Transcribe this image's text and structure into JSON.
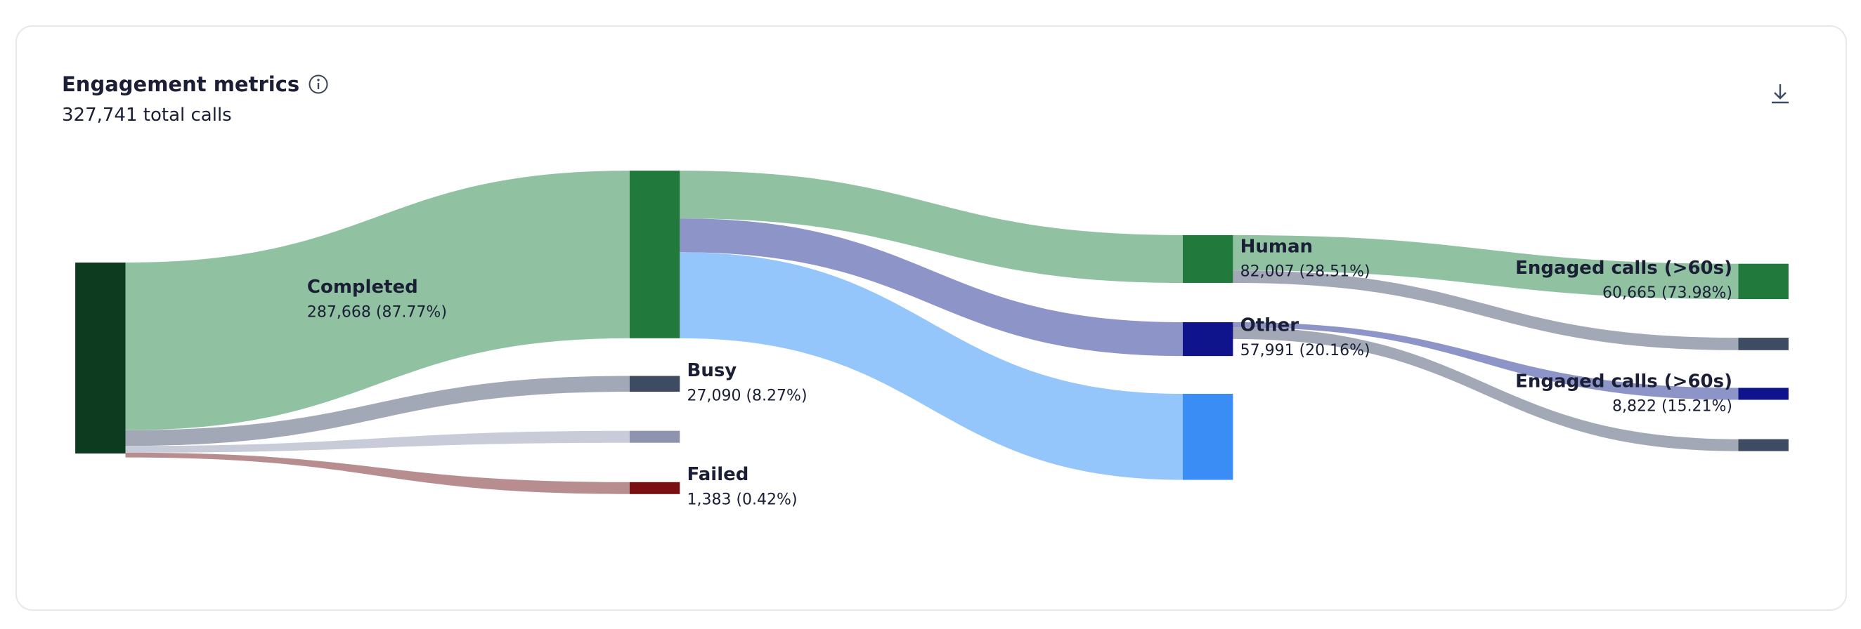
{
  "header": {
    "title": "Engagement metrics",
    "subtitle": "327,741 total calls"
  },
  "chart_data": {
    "type": "sankey",
    "nodes": [
      {
        "name": null,
        "value": 327741,
        "value_label": null,
        "color": "#0d3b1f"
      },
      {
        "name": "Completed",
        "value": 287668,
        "value_label": "287,668 (87.77%)",
        "color": "#217a3c"
      },
      {
        "name": "Busy",
        "value": 27090,
        "value_label": "27,090 (8.27%)",
        "color": "#3d4b63"
      },
      {
        "name": null,
        "value": 11600,
        "value_label": null,
        "color": "#8e94ad"
      },
      {
        "name": "Failed",
        "value": 1383,
        "value_label": "1,383 (0.42%)",
        "color": "#7a0f12"
      },
      {
        "name": "Human",
        "value": 82007,
        "value_label": "82,007 (28.51%)",
        "color": "#217a3c"
      },
      {
        "name": "Other",
        "value": 57991,
        "value_label": "57,991 (20.16%)",
        "color": "#10148c"
      },
      {
        "name": null,
        "value": 147670,
        "value_label": null,
        "color": "#3a8df5"
      },
      {
        "name": "Engaged calls (>60s)",
        "value": 60665,
        "value_label": "60,665 (73.98%)",
        "color": "#217a3c"
      },
      {
        "name": null,
        "value": 21342,
        "value_label": null,
        "color": "#3d4b63"
      },
      {
        "name": "Engaged calls (>60s)",
        "value": 8822,
        "value_label": "8,822 (15.21%)",
        "color": "#10148c"
      },
      {
        "name": null,
        "value": 20000,
        "value_label": null,
        "color": "#3d4b63"
      }
    ],
    "links": [
      {
        "source": 0,
        "target": 1,
        "value": 287668,
        "color": "#90c2a2"
      },
      {
        "source": 0,
        "target": 2,
        "value": 27090,
        "color": "#a3a8b6"
      },
      {
        "source": 0,
        "target": 3,
        "value": 11600,
        "color": "#c8cbd8"
      },
      {
        "source": 0,
        "target": 4,
        "value": 1383,
        "color": "#b88d90"
      },
      {
        "source": 1,
        "target": 5,
        "value": 82007,
        "color": "#90c2a2"
      },
      {
        "source": 1,
        "target": 6,
        "value": 57991,
        "color": "#8d94c8"
      },
      {
        "source": 1,
        "target": 7,
        "value": 147670,
        "color": "#94c6fb"
      },
      {
        "source": 5,
        "target": 8,
        "value": 60665,
        "color": "#90c2a2"
      },
      {
        "source": 5,
        "target": 9,
        "value": 21342,
        "color": "#a3a8b6"
      },
      {
        "source": 6,
        "target": 10,
        "value": 8822,
        "color": "#8d94c8"
      },
      {
        "source": 6,
        "target": 11,
        "value": 20000,
        "color": "#a3a8b6"
      }
    ]
  }
}
